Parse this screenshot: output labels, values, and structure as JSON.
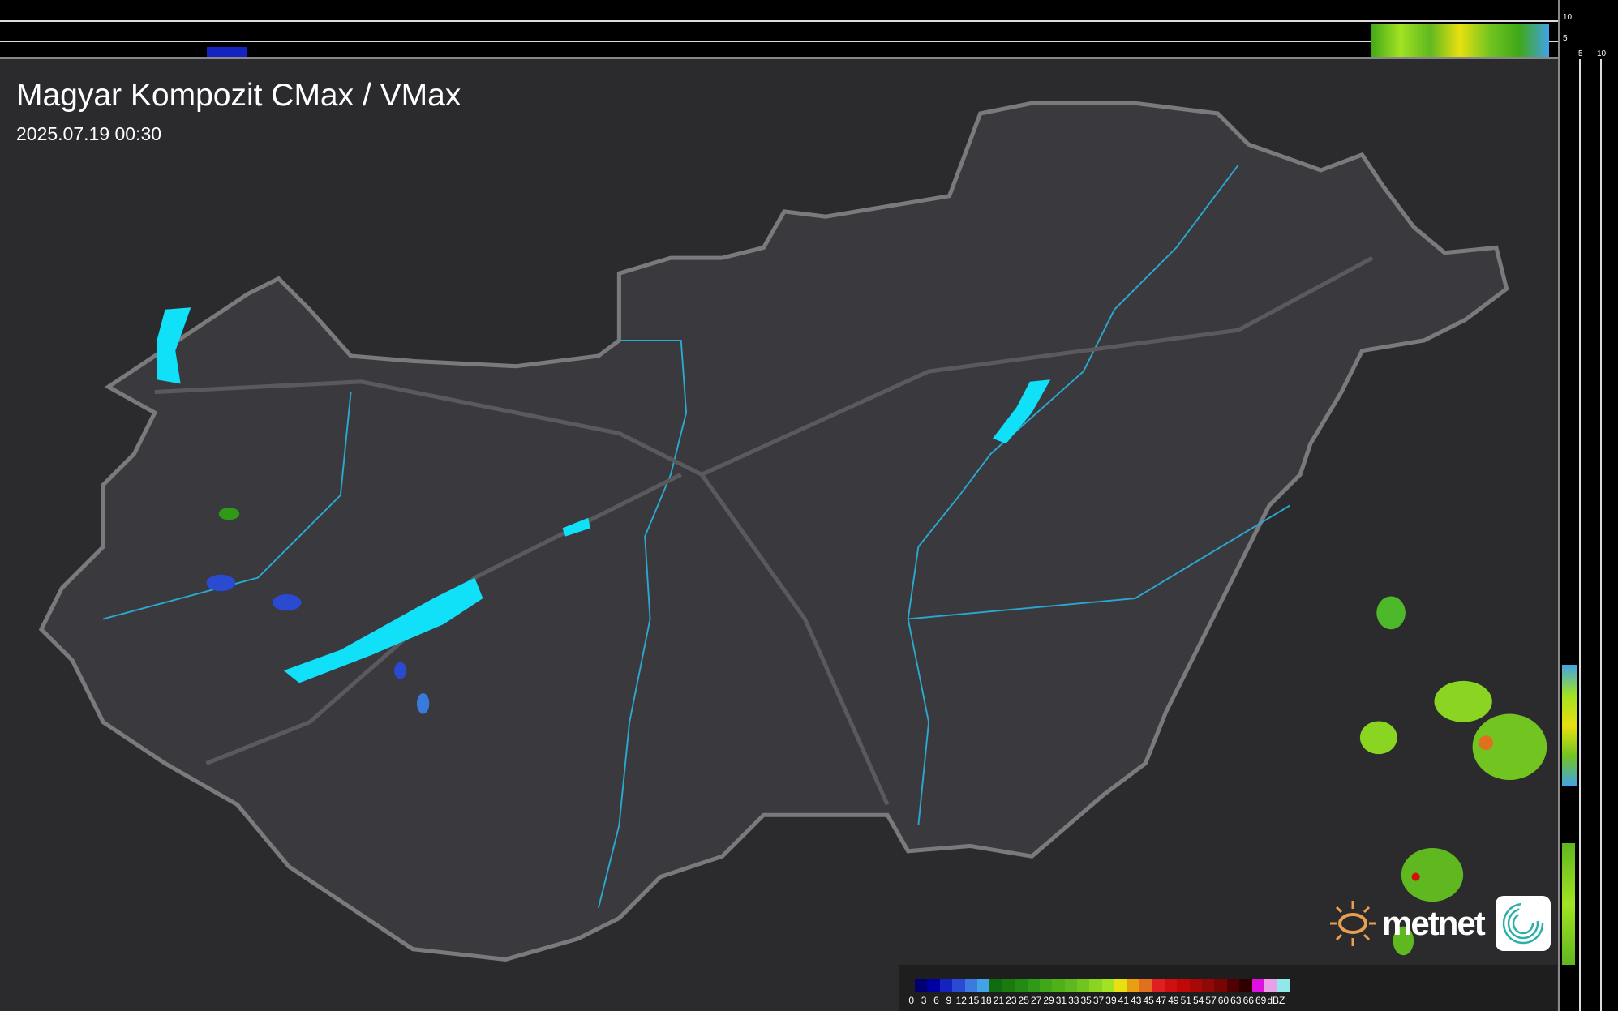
{
  "header": {
    "title": "Magyar Kompozit CMax / VMax",
    "timestamp": "2025.07.19 00:30"
  },
  "profile_axes": {
    "top_ticks": [
      "10",
      "5"
    ],
    "right_ticks": [
      "5",
      "10"
    ]
  },
  "legend": {
    "labels": [
      "0",
      "3",
      "6",
      "9",
      "12",
      "15",
      "18",
      "21",
      "23",
      "25",
      "27",
      "29",
      "31",
      "33",
      "35",
      "37",
      "39",
      "41",
      "43",
      "45",
      "47",
      "49",
      "51",
      "54",
      "57",
      "60",
      "63",
      "66",
      "69",
      "dBZ"
    ],
    "colors": [
      "#000070",
      "#0000a0",
      "#1422c0",
      "#2a4ad2",
      "#3a7ade",
      "#42a2e8",
      "#106a10",
      "#1a7a10",
      "#248a14",
      "#2e9a18",
      "#40a818",
      "#50b018",
      "#60b820",
      "#72c420",
      "#8ad422",
      "#a2e222",
      "#e8e010",
      "#e8a010",
      "#e07020",
      "#e02020",
      "#d01010",
      "#c00808",
      "#a80808",
      "#900808",
      "#780404",
      "#500000",
      "#300000",
      "#e010e0",
      "#e8a0e8",
      "#90e8e8"
    ]
  },
  "branding": {
    "logo": "metnet",
    "app_icon": "swirl-icon"
  },
  "colors": {
    "lake": "#10e0f8",
    "river": "#2aa8d0",
    "border": "#7a7a7c",
    "country_fill": "#3a3a3e",
    "background": "#2b2b2d"
  }
}
